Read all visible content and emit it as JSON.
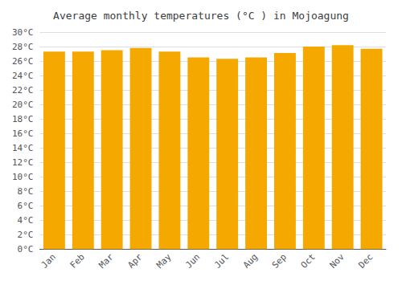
{
  "chart_data": {
    "type": "bar",
    "title": "Average monthly temperatures (°C ) in Mojoagung",
    "categories": [
      "Jan",
      "Feb",
      "Mar",
      "Apr",
      "May",
      "Jun",
      "Jul",
      "Aug",
      "Sep",
      "Oct",
      "Nov",
      "Dec"
    ],
    "values": [
      27.3,
      27.3,
      27.5,
      27.8,
      27.3,
      26.5,
      26.3,
      26.5,
      27.1,
      28.0,
      28.2,
      27.7
    ],
    "color": "#F5A800",
    "ylim": [
      0,
      30
    ],
    "yticks": [
      {
        "value": 0,
        "label": "0°C"
      },
      {
        "value": 2,
        "label": "2°C"
      },
      {
        "value": 4,
        "label": "4°C"
      },
      {
        "value": 6,
        "label": "6°C"
      },
      {
        "value": 8,
        "label": "8°C"
      },
      {
        "value": 10,
        "label": "10°C"
      },
      {
        "value": 12,
        "label": "12°C"
      },
      {
        "value": 14,
        "label": "14°C"
      },
      {
        "value": 16,
        "label": "16°C"
      },
      {
        "value": 18,
        "label": "18°C"
      },
      {
        "value": 20,
        "label": "20°C"
      },
      {
        "value": 22,
        "label": "22°C"
      },
      {
        "value": 24,
        "label": "24°C"
      },
      {
        "value": 26,
        "label": "26°C"
      },
      {
        "value": 28,
        "label": "28°C"
      },
      {
        "value": 30,
        "label": "30°C"
      }
    ],
    "grid": true
  }
}
